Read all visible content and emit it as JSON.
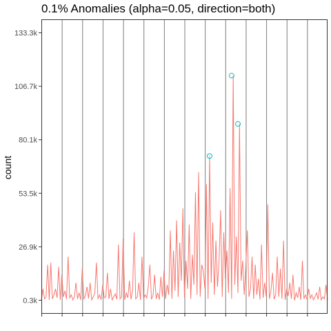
{
  "chart_data": {
    "type": "line",
    "title": "0.1% Anomalies (alpha=0.05, direction=both)",
    "xlabel": "",
    "ylabel": "count",
    "y_ticks": [
      {
        "label": "0.3k",
        "value": 300
      },
      {
        "label": "26.9k",
        "value": 26900
      },
      {
        "label": "53.5k",
        "value": 53500
      },
      {
        "label": "80.1k",
        "value": 80100
      },
      {
        "label": "106.7k",
        "value": 106700
      },
      {
        "label": "133.3k",
        "value": 133300
      }
    ],
    "ylim": [
      -6400,
      140000
    ],
    "x_tick_count": 14,
    "grid": "vertical",
    "series_color": "#F8766D",
    "anomaly_color": "#00BFC4",
    "series": [
      {
        "values": [
          300,
          6000,
          1000,
          2000,
          18000,
          500,
          19000,
          1000,
          3000,
          6000,
          1500,
          17000,
          500,
          13000,
          2000,
          5000,
          1000,
          22000,
          1500,
          3000,
          500,
          2000,
          9000,
          1000,
          4000,
          500,
          16000,
          1000,
          2500,
          7000,
          1200,
          9000,
          500,
          2000,
          4000,
          19000,
          1000,
          3000,
          600,
          8000,
          1500,
          2000,
          14000,
          1000,
          6000,
          500,
          2000,
          3500,
          800,
          28000,
          1000,
          2000,
          31000,
          600,
          4000,
          1500,
          10000,
          800,
          5000,
          34000,
          1000,
          2000,
          9000,
          500,
          22000,
          1000,
          3000,
          1500,
          7000,
          18000,
          800,
          2500,
          13000,
          1000,
          4000,
          600,
          12000,
          2000,
          15000,
          1000,
          8000,
          3000,
          35000,
          1000,
          25000,
          5000,
          40000,
          2000,
          29000,
          10000,
          46000,
          1500,
          20000,
          6000,
          38000,
          1000,
          23000,
          8000,
          54000,
          3000,
          64000,
          2000,
          18000,
          15000,
          6000,
          58000,
          1000,
          72000,
          9000,
          39000,
          3000,
          30000,
          7000,
          20000,
          45000,
          2000,
          34000,
          11000,
          25000,
          4000,
          56000,
          1000,
          112000,
          8000,
          32000,
          4000,
          88000,
          10000,
          20000,
          3000,
          17000,
          35000,
          2000,
          6000,
          22000,
          1000,
          18000,
          3000,
          11000,
          700,
          28000,
          1500,
          9000,
          2000,
          48000,
          1000,
          5000,
          14000,
          800,
          3000,
          22000,
          2000,
          16000,
          1000,
          30000,
          500,
          6000,
          2500,
          9000,
          1000,
          13000,
          300,
          4000,
          1500,
          7000,
          500,
          20000,
          1000,
          3000,
          600,
          6000,
          1200,
          3000,
          500,
          2000,
          4000,
          800,
          7000,
          400,
          2000,
          1000,
          8000,
          500
        ]
      }
    ],
    "anomalies": [
      {
        "index": 107,
        "value": 72000
      },
      {
        "index": 121,
        "value": 112000
      },
      {
        "index": 125,
        "value": 88000
      }
    ]
  }
}
